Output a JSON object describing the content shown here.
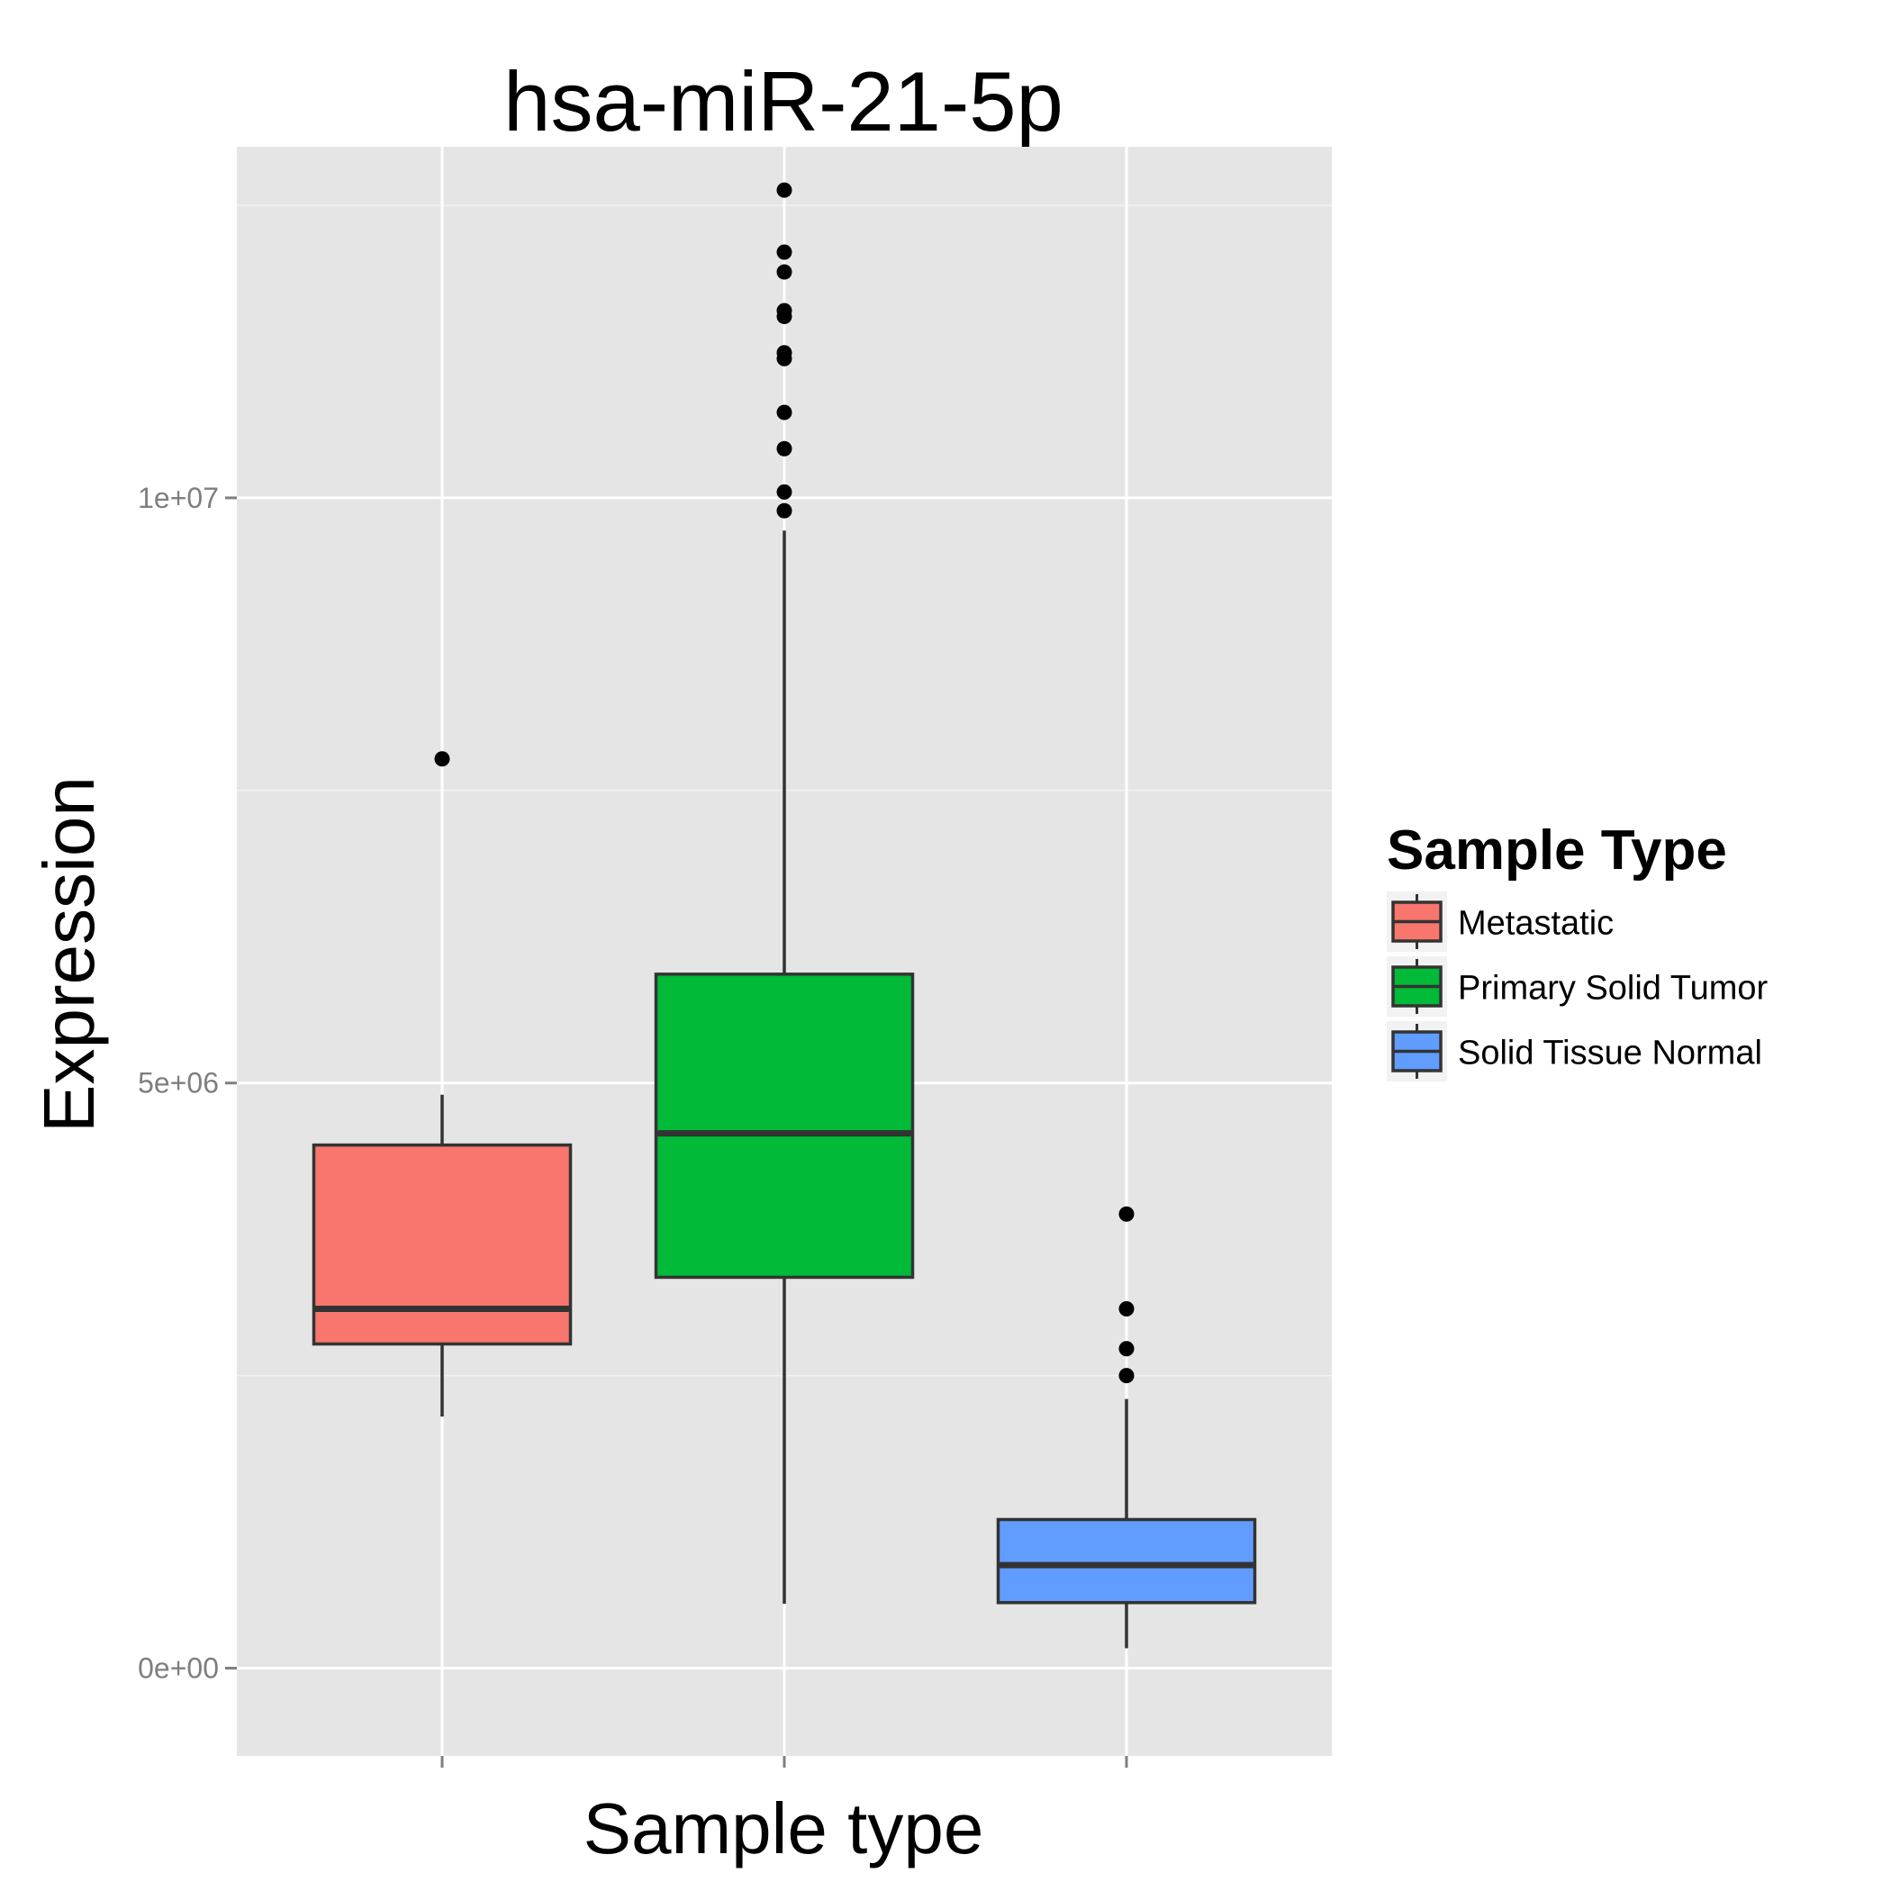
{
  "chart_data": {
    "type": "box",
    "title": "hsa-miR-21-5p",
    "xlabel": "Sample type",
    "ylabel": "Expression",
    "ylim": [
      -750000,
      13000000
    ],
    "y_ticks": [
      {
        "value": 0,
        "label": "0e+00"
      },
      {
        "value": 5000000,
        "label": "5e+06"
      },
      {
        "value": 10000000,
        "label": "1e+07"
      }
    ],
    "grid": true,
    "legend": {
      "title": "Sample Type",
      "position": "right",
      "items": [
        {
          "label": "Metastatic",
          "color": "#F8766D"
        },
        {
          "label": "Primary Solid Tumor",
          "color": "#00BA38"
        },
        {
          "label": "Solid Tissue Normal",
          "color": "#619CFF"
        }
      ]
    },
    "series": [
      {
        "name": "Metastatic",
        "color": "#F8766D",
        "whisker_low": 2150000,
        "q1": 2770000,
        "median": 3070000,
        "q3": 4470000,
        "whisker_high": 4900000,
        "outliers": [
          7770000
        ]
      },
      {
        "name": "Primary Solid Tumor",
        "color": "#00BA38",
        "whisker_low": 550000,
        "q1": 3340000,
        "median": 4570000,
        "q3": 5930000,
        "whisker_high": 9720000,
        "outliers": [
          9890000,
          10050000,
          10420000,
          10730000,
          11190000,
          11240000,
          11550000,
          11600000,
          11930000,
          12100000,
          12630000
        ]
      },
      {
        "name": "Solid Tissue Normal",
        "color": "#619CFF",
        "whisker_low": 170000,
        "q1": 560000,
        "median": 880000,
        "q3": 1270000,
        "whisker_high": 2300000,
        "outliers": [
          2500000,
          2730000,
          3070000,
          3880000
        ]
      }
    ]
  }
}
